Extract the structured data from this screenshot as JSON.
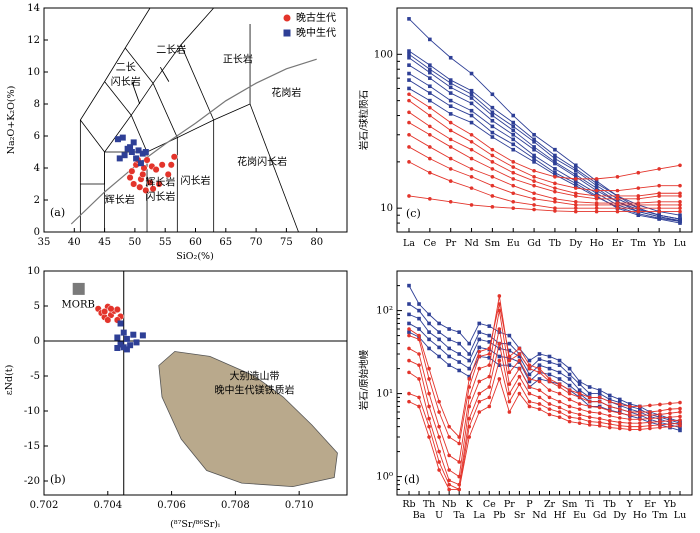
{
  "colors": {
    "late_paleozoic": "#e3342b",
    "late_mesozoic": "#2e3f96",
    "field_fill": "#b9a98c",
    "morb_fill": "#7a7a7a"
  },
  "chart_data": [
    {
      "panel": "(a)",
      "type": "scatter",
      "xlabel": "SiO₂(%)",
      "ylabel": "Na₂O+K₂O(%)",
      "xlim": [
        35,
        85
      ],
      "ylim": [
        0,
        14
      ],
      "xticks": [
        "35",
        "40",
        "45",
        "50",
        "55",
        "60",
        "65",
        "70",
        "75",
        "80"
      ],
      "yticks": [
        "0",
        "2",
        "4",
        "6",
        "8",
        "10",
        "12",
        "14"
      ],
      "legend": [
        {
          "name": "晚古生代",
          "marker": "circle",
          "color_key": "late_paleozoic"
        },
        {
          "name": "晚中生代",
          "marker": "square",
          "color_key": "late_mesozoic"
        }
      ],
      "fields": [
        "二长岩",
        "正长岩",
        "二长闪长岩",
        "花岗岩",
        "花岗闪长岩",
        "辉长岩",
        "辉长岩闪长岩",
        "闪长岩"
      ],
      "series": [
        {
          "name": "晚古生代",
          "points": [
            [
              49.5,
              3.8
            ],
            [
              50.2,
              4.2
            ],
            [
              51.0,
              3.3
            ],
            [
              51.3,
              3.6
            ],
            [
              52.0,
              4.5
            ],
            [
              52.8,
              4.1
            ],
            [
              53.5,
              3.9
            ],
            [
              50.8,
              2.8
            ],
            [
              54.0,
              3.0
            ],
            [
              55.5,
              3.6
            ],
            [
              56.0,
              4.2
            ],
            [
              56.5,
              4.7
            ],
            [
              49.8,
              3.0
            ],
            [
              51.8,
              2.6
            ],
            [
              52.5,
              3.1
            ],
            [
              53.0,
              2.7
            ],
            [
              50.5,
              4.5
            ],
            [
              51.5,
              4.0
            ],
            [
              54.5,
              4.2
            ],
            [
              49.2,
              3.4
            ]
          ]
        },
        {
          "name": "晚中生代",
          "points": [
            [
              47.2,
              5.8
            ],
            [
              48.0,
              5.9
            ],
            [
              49.2,
              5.3
            ],
            [
              49.8,
              5.6
            ],
            [
              50.6,
              5.1
            ],
            [
              51.3,
              4.9
            ],
            [
              50.2,
              4.6
            ],
            [
              48.3,
              4.8
            ],
            [
              47.5,
              4.6
            ],
            [
              51.8,
              5.0
            ],
            [
              51.0,
              4.3
            ],
            [
              49.5,
              5.0
            ],
            [
              48.8,
              5.2
            ]
          ]
        }
      ]
    },
    {
      "panel": "(b)",
      "type": "scatter",
      "xlabel": "(⁸⁷Sr/⁸⁶Sr)ᵢ",
      "ylabel": "εNd(t)",
      "xlim": [
        0.702,
        0.7115
      ],
      "ylim": [
        -22,
        10
      ],
      "xticks": [
        "0.702",
        "0.704",
        "0.706",
        "0.708",
        "0.710"
      ],
      "yticks": [
        "10",
        "5",
        "0",
        "-5",
        "-10",
        "-15",
        "-20"
      ],
      "labels": {
        "morb": "MORB",
        "field": "大别造山带\n晚中生代镁铁质岩"
      },
      "series": [
        {
          "name": "晚古生代",
          "points": [
            [
              0.7037,
              4.6
            ],
            [
              0.7038,
              4.0
            ],
            [
              0.7039,
              3.4
            ],
            [
              0.704,
              4.9
            ],
            [
              0.7041,
              3.7
            ],
            [
              0.7042,
              4.3
            ],
            [
              0.7043,
              4.5
            ],
            [
              0.704,
              3.0
            ],
            [
              0.7044,
              3.5
            ],
            [
              0.7041,
              4.6
            ],
            [
              0.7039,
              4.2
            ],
            [
              0.7043,
              3.0
            ]
          ]
        },
        {
          "name": "晚中生代",
          "points": [
            [
              0.7044,
              2.5
            ],
            [
              0.7045,
              1.2
            ],
            [
              0.7046,
              0.3
            ],
            [
              0.7048,
              0.9
            ],
            [
              0.7044,
              -0.5
            ],
            [
              0.7046,
              -1.2
            ],
            [
              0.7047,
              -0.6
            ],
            [
              0.7043,
              -1.0
            ],
            [
              0.7049,
              -0.2
            ],
            [
              0.7045,
              -0.9
            ],
            [
              0.7051,
              0.8
            ],
            [
              0.7043,
              0.5
            ]
          ]
        }
      ]
    },
    {
      "panel": "(c)",
      "type": "line",
      "ylabel": "岩石/球粒陨石",
      "yscale": "log",
      "ylim": [
        7,
        200
      ],
      "yticks": [
        "10",
        "100"
      ],
      "categories": [
        "La",
        "Ce",
        "Pr",
        "Nd",
        "Sm",
        "Eu",
        "Gd",
        "Tb",
        "Dy",
        "Ho",
        "Er",
        "Tm",
        "Yb",
        "Lu"
      ],
      "series": [
        {
          "name": "晚中生代",
          "values": [
            170,
            125,
            95,
            75,
            55,
            40,
            30,
            24,
            19,
            15,
            12,
            10,
            9,
            8.5
          ]
        },
        {
          "name": "晚中生代",
          "values": [
            105,
            85,
            68,
            58,
            45,
            36,
            28,
            22,
            18,
            14.5,
            12,
            10.5,
            9.5,
            9
          ]
        },
        {
          "name": "晚中生代",
          "values": [
            100,
            80,
            65,
            55,
            42,
            34,
            27,
            21,
            17.5,
            14,
            11.5,
            10,
            9,
            8.5
          ]
        },
        {
          "name": "晚中生代",
          "values": [
            95,
            76,
            61,
            52,
            40,
            32,
            25,
            20,
            16.5,
            13.5,
            11,
            9.5,
            8.8,
            8.2
          ]
        },
        {
          "name": "晚中生代",
          "values": [
            85,
            70,
            56,
            48,
            37,
            30,
            24,
            19.5,
            16,
            13,
            11,
            9.8,
            9,
            8.5
          ]
        },
        {
          "name": "晚中生代",
          "values": [
            75,
            62,
            50,
            43,
            34,
            28,
            22,
            18,
            15,
            12.5,
            10.5,
            9.5,
            8.8,
            8.3
          ]
        },
        {
          "name": "晚中生代",
          "values": [
            68,
            56,
            46,
            40,
            31,
            26,
            21,
            17,
            14.5,
            12,
            10,
            9,
            8.5,
            8
          ]
        },
        {
          "name": "晚中生代",
          "values": [
            60,
            50,
            41,
            36,
            29,
            24,
            20,
            16.5,
            14,
            11.8,
            10.2,
            9.2,
            8.6,
            8.2
          ]
        },
        {
          "name": "晚古生代",
          "values": [
            50,
            40,
            32,
            27,
            22,
            18.5,
            16,
            14.5,
            13.5,
            13,
            13,
            13.5,
            14,
            14
          ]
        },
        {
          "name": "晚古生代",
          "values": [
            42,
            34,
            28,
            24,
            20,
            17,
            15,
            13.5,
            12.5,
            12,
            12,
            12,
            12.5,
            12.5
          ]
        },
        {
          "name": "晚古生代",
          "values": [
            36,
            30,
            25,
            21,
            18,
            15.5,
            14,
            12.8,
            12,
            11.5,
            11.5,
            11.5,
            12,
            12
          ]
        },
        {
          "name": "晚古生代",
          "values": [
            30,
            25,
            21,
            18,
            16,
            14,
            12.5,
            11.5,
            11,
            10.8,
            10.8,
            10.8,
            11,
            11
          ]
        },
        {
          "name": "晚古生代",
          "values": [
            25,
            21,
            18,
            16,
            14,
            12.5,
            11.5,
            11,
            10.5,
            10.5,
            10.5,
            10.5,
            10.5,
            10.5
          ]
        },
        {
          "name": "晚古生代",
          "values": [
            20,
            17,
            15,
            13.5,
            12,
            11,
            10.5,
            10,
            10,
            10,
            10,
            10,
            10,
            10
          ]
        },
        {
          "name": "晚古生代",
          "values": [
            55,
            45,
            36,
            30,
            24,
            20,
            17.5,
            16,
            15.5,
            15.5,
            16,
            17,
            18,
            19
          ]
        },
        {
          "name": "晚古生代",
          "values": [
            12,
            11.5,
            11,
            10.5,
            10.2,
            10,
            9.8,
            9.6,
            9.5,
            9.5,
            9.5,
            9.5,
            9.5,
            9.5
          ]
        }
      ]
    },
    {
      "panel": "(d)",
      "type": "line",
      "ylabel": "岩石/原始地幔",
      "yscale": "log",
      "ylim": [
        0.6,
        300
      ],
      "yticks": [
        "10⁰",
        "10¹",
        "10²"
      ],
      "categories": [
        "Rb",
        "Ba",
        "Th",
        "U",
        "Nb",
        "Ta",
        "K",
        "La",
        "Ce",
        "Pb",
        "Pr",
        "Sr",
        "P",
        "Nd",
        "Zr",
        "Hf",
        "Sm",
        "Eu",
        "Ti",
        "Gd",
        "Tb",
        "Dy",
        "Y",
        "Ho",
        "Er",
        "Tm",
        "Yb",
        "Lu"
      ],
      "series": [
        {
          "name": "晚中生代",
          "values": [
            200,
            120,
            90,
            70,
            60,
            55,
            40,
            70,
            65,
            55,
            50,
            35,
            25,
            30,
            28,
            25,
            20,
            14,
            12,
            11,
            9.5,
            8.5,
            7.5,
            7,
            6,
            5.5,
            5,
            4.6
          ]
        },
        {
          "name": "晚中生代",
          "values": [
            120,
            100,
            70,
            55,
            45,
            40,
            30,
            55,
            50,
            40,
            40,
            30,
            20,
            26,
            24,
            22,
            17,
            13,
            10,
            10,
            8.5,
            7.8,
            7,
            6.5,
            5.6,
            5.2,
            4.8,
            4.4
          ]
        },
        {
          "name": "晚中生代",
          "values": [
            90,
            80,
            55,
            45,
            35,
            30,
            25,
            45,
            42,
            35,
            33,
            28,
            17,
            22,
            20,
            18,
            15,
            11,
            9,
            9,
            8,
            7.2,
            6.5,
            6,
            5.3,
            4.9,
            4.5,
            4.2
          ]
        },
        {
          "name": "晚中生代",
          "values": [
            70,
            60,
            45,
            36,
            28,
            24,
            20,
            36,
            34,
            28,
            27,
            24,
            14,
            18,
            17,
            15,
            12.5,
            10,
            8,
            8,
            7,
            6.5,
            6,
            5.5,
            4.9,
            4.5,
            4.2,
            3.9
          ]
        },
        {
          "name": "晚中生代",
          "values": [
            55,
            48,
            35,
            28,
            22,
            19,
            16,
            28,
            27,
            22,
            22,
            20,
            12,
            15,
            14,
            13,
            11,
            9,
            7,
            7,
            6.3,
            5.9,
            5.4,
            5,
            4.5,
            4.2,
            3.9,
            3.6
          ]
        },
        {
          "name": "晚古生代",
          "values": [
            50,
            45,
            15,
            6,
            3,
            2.5,
            12,
            28,
            30,
            150,
            25,
            30,
            20,
            18,
            14,
            12,
            10,
            9,
            8,
            8,
            7,
            6.5,
            6,
            6,
            6,
            6.2,
            6.5,
            6.6
          ]
        },
        {
          "name": "晚古生代",
          "values": [
            35,
            30,
            10,
            4,
            1.8,
            1.5,
            9,
            20,
            22,
            100,
            18,
            25,
            15,
            14,
            11,
            10,
            8.5,
            7.5,
            7,
            6.8,
            6.2,
            5.8,
            5.5,
            5.5,
            5.5,
            5.6,
            5.8,
            6
          ]
        },
        {
          "name": "晚古生代",
          "values": [
            25,
            22,
            7,
            3,
            1.2,
            1,
            7,
            14,
            16,
            60,
            13,
            20,
            12,
            11,
            9,
            8,
            7,
            6.5,
            6,
            5.8,
            5.4,
            5.1,
            4.9,
            4.9,
            5,
            5.1,
            5.2,
            5.3
          ]
        },
        {
          "name": "晚古生代",
          "values": [
            18,
            15,
            5,
            2,
            0.9,
            0.8,
            5,
            10,
            12,
            40,
            10,
            16,
            10,
            9,
            7.5,
            6.8,
            6,
            5.6,
            5.2,
            5,
            4.7,
            4.5,
            4.4,
            4.4,
            4.5,
            4.6,
            4.7,
            4.8
          ]
        },
        {
          "name": "晚古生代",
          "values": [
            10,
            9,
            4,
            1.5,
            0.8,
            0.7,
            4,
            8,
            9,
            25,
            8,
            13,
            8,
            7.5,
            6.5,
            6,
            5.2,
            5,
            4.6,
            4.5,
            4.3,
            4.1,
            4,
            4,
            4.1,
            4.2,
            4.3,
            4.4
          ]
        },
        {
          "name": "晚古生代",
          "values": [
            60,
            50,
            20,
            8,
            4,
            3,
            15,
            32,
            35,
            120,
            28,
            35,
            22,
            20,
            15,
            13,
            11,
            10,
            9,
            9,
            8,
            7.4,
            7,
            7,
            7.2,
            7.4,
            7.6,
            7.8
          ]
        },
        {
          "name": "晚古生代",
          "values": [
            8,
            7,
            3,
            1.2,
            0.7,
            0.7,
            3,
            6,
            7,
            15,
            6,
            10,
            7,
            6.5,
            5.6,
            5.2,
            4.6,
            4.4,
            4.2,
            4.1,
            3.9,
            3.8,
            3.7,
            3.7,
            3.8,
            3.9,
            4,
            4.1
          ]
        }
      ]
    }
  ]
}
